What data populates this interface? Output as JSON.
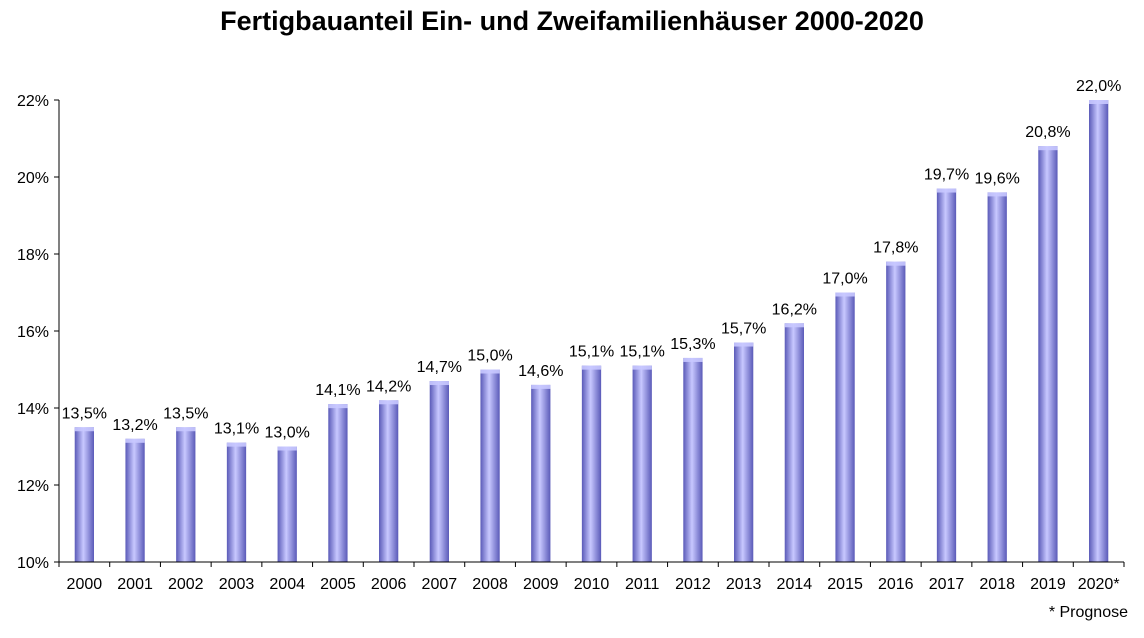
{
  "chart_data": {
    "type": "bar",
    "title": "Fertigbauanteil Ein- und Zweifamilienhäuser 2000-2020",
    "categories": [
      "2000",
      "2001",
      "2002",
      "2003",
      "2004",
      "2005",
      "2006",
      "2007",
      "2008",
      "2009",
      "2010",
      "2011",
      "2012",
      "2013",
      "2014",
      "2015",
      "2016",
      "2017",
      "2018",
      "2019",
      "2020*"
    ],
    "values": [
      13.5,
      13.2,
      13.5,
      13.1,
      13.0,
      14.1,
      14.2,
      14.7,
      15.0,
      14.6,
      15.1,
      15.1,
      15.3,
      15.7,
      16.2,
      17.0,
      17.8,
      19.7,
      19.6,
      20.8,
      22.0
    ],
    "data_labels": [
      "13,5%",
      "13,2%",
      "13,5%",
      "13,1%",
      "13,0%",
      "14,1%",
      "14,2%",
      "14,7%",
      "15,0%",
      "14,6%",
      "15,1%",
      "15,1%",
      "15,3%",
      "15,7%",
      "16,2%",
      "17,0%",
      "17,8%",
      "19,7%",
      "19,6%",
      "20,8%",
      "22,0%"
    ],
    "y_ticks": [
      10,
      12,
      14,
      16,
      18,
      20,
      22
    ],
    "y_tick_labels": [
      "10%",
      "12%",
      "14%",
      "16%",
      "18%",
      "20%",
      "22%"
    ],
    "ylim": [
      10,
      22
    ],
    "xlabel": "",
    "ylabel": "",
    "grid": false,
    "legend": "none",
    "bar_color": "#9b9bf0",
    "bar_color_dark": "#5a5ab8",
    "bar_color_light": "#c8c8ff"
  },
  "footnote": "* Prognose"
}
